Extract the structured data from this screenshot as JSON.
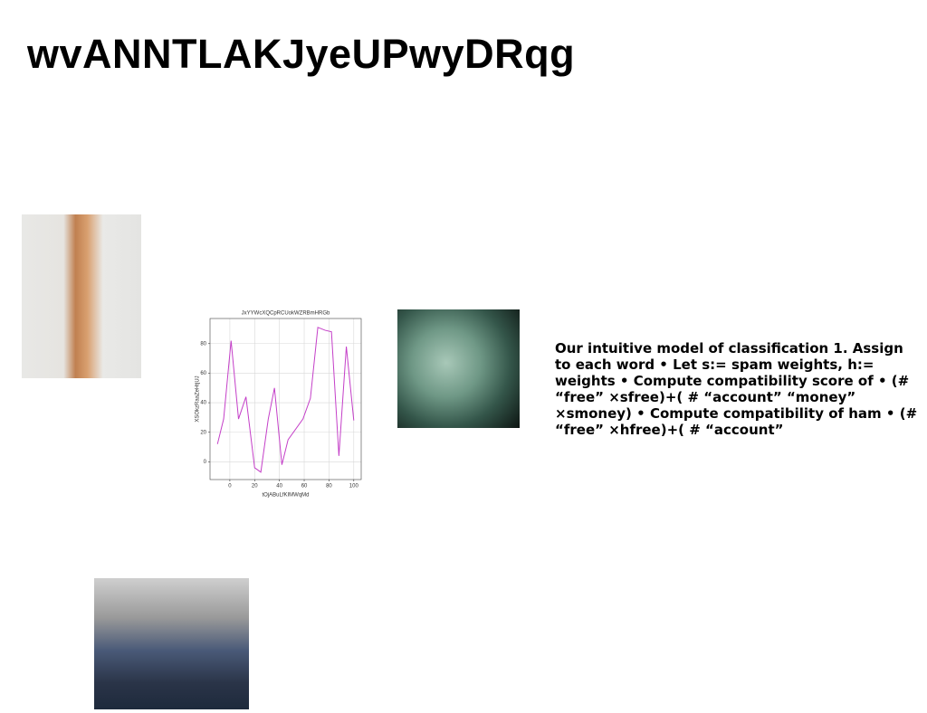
{
  "header": {
    "title": "wvANNTLAKJyeUPwyDRqg"
  },
  "body": {
    "text": "Our intuitive model of classification 1. Assign to each word • Let s:= spam weights, h:= weights • Compute compatibility score of • (# “free” ×sfree)+( # “account” “money” ×smoney) • Compute compatibility of ham • (# “free” ×hfree)+( # “account”"
  },
  "chart_data": {
    "type": "line",
    "title": "JxYYWcXQCpRCUokWZRBmHRGb",
    "x_label": "tOjABuLfKIMWqMd",
    "y_label": "XSOkzRaaZeHtjUJ",
    "x": [
      -10,
      -5,
      1,
      7,
      13,
      20,
      25,
      31,
      36,
      42,
      47,
      59,
      65,
      71,
      77,
      82,
      88,
      94,
      100
    ],
    "values": [
      12,
      29,
      82,
      29,
      44,
      -4,
      -7,
      29,
      50,
      -2,
      15,
      29,
      43,
      91,
      89,
      88,
      4,
      78,
      28
    ],
    "color": "#c43fc8",
    "xlim": [
      -16,
      106
    ],
    "ylim": [
      -12,
      97
    ],
    "xticks": [
      0,
      20,
      40,
      60,
      80,
      100
    ],
    "yticks": [
      0,
      20,
      40,
      60,
      80
    ],
    "grid": true
  }
}
